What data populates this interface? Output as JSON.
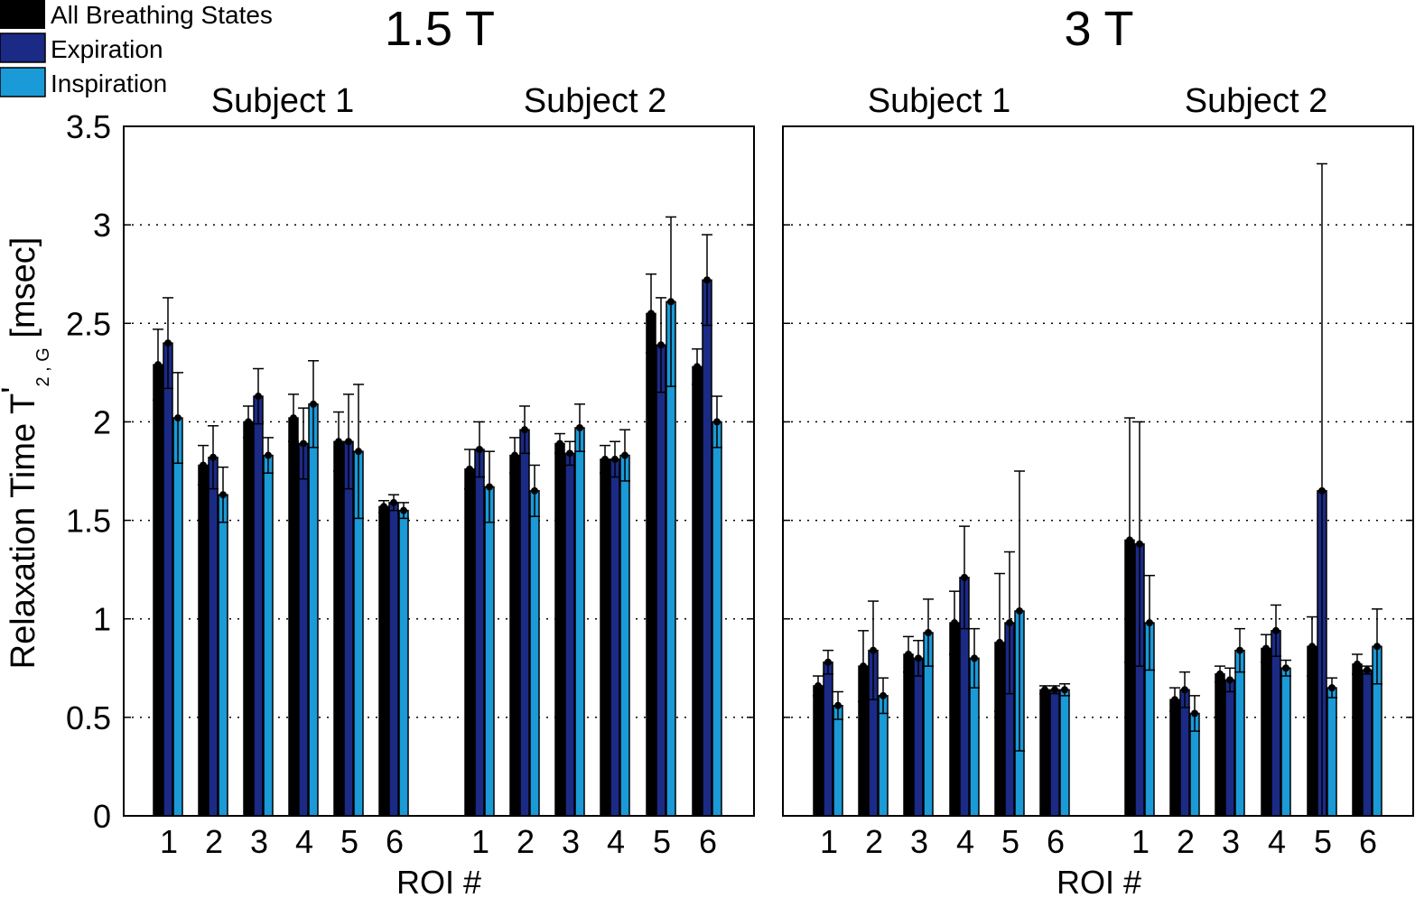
{
  "legend": {
    "placement": "top-left",
    "items": [
      {
        "label": "All Breathing States",
        "color": "#000000"
      },
      {
        "label": "Expiration",
        "color": "#1b2a85"
      },
      {
        "label": "Inspiration",
        "color": "#1a9ad7"
      }
    ]
  },
  "y_axis_label_main": "Relaxation Time T",
  "y_axis_label_prime": "'",
  "y_axis_label_sub": "2 , G",
  "y_axis_label_unit": " [msec]",
  "chart_data": [
    {
      "type": "bar",
      "title": "1.5 T",
      "xlabel": "ROI #",
      "ylabel": "Relaxation Time T'2,G [msec]",
      "ylim": [
        0,
        3.5
      ],
      "yticks": [
        "0",
        "0.5",
        "1",
        "1.5",
        "2",
        "2.5",
        "3",
        "3.5"
      ],
      "grid": "dotted horizontal",
      "groups": [
        {
          "label": "Subject 1",
          "categories": [
            "1",
            "2",
            "3",
            "4",
            "5",
            "6"
          ],
          "series": [
            {
              "name": "All Breathing States",
              "values": [
                2.29,
                1.78,
                2.0,
                2.02,
                1.9,
                1.57
              ],
              "errors": [
                0.18,
                0.1,
                0.08,
                0.12,
                0.15,
                0.03
              ]
            },
            {
              "name": "Expiration",
              "values": [
                2.4,
                1.82,
                2.13,
                1.89,
                1.9,
                1.59
              ],
              "errors": [
                0.23,
                0.16,
                0.14,
                0.18,
                0.24,
                0.04
              ]
            },
            {
              "name": "Inspiration",
              "values": [
                2.02,
                1.63,
                1.83,
                2.09,
                1.85,
                1.55
              ],
              "errors": [
                0.23,
                0.14,
                0.09,
                0.22,
                0.34,
                0.04
              ]
            }
          ]
        },
        {
          "label": "Subject 2",
          "categories": [
            "1",
            "2",
            "3",
            "4",
            "5",
            "6"
          ],
          "series": [
            {
              "name": "All Breathing States",
              "values": [
                1.76,
                1.83,
                1.89,
                1.81,
                2.55,
                2.28
              ],
              "errors": [
                0.1,
                0.09,
                0.05,
                0.07,
                0.2,
                0.09
              ]
            },
            {
              "name": "Expiration",
              "values": [
                1.86,
                1.96,
                1.84,
                1.81,
                2.39,
                2.72
              ],
              "errors": [
                0.14,
                0.12,
                0.06,
                0.09,
                0.24,
                0.23
              ]
            },
            {
              "name": "Inspiration",
              "values": [
                1.67,
                1.65,
                1.97,
                1.83,
                2.61,
                2.0
              ],
              "errors": [
                0.18,
                0.13,
                0.12,
                0.13,
                0.43,
                0.13
              ]
            }
          ]
        }
      ]
    },
    {
      "type": "bar",
      "title": "3 T",
      "xlabel": "ROI #",
      "ylabel": "Relaxation Time T'2,G [msec]",
      "ylim": [
        0,
        3.5
      ],
      "yticks": [
        "0",
        "0.5",
        "1",
        "1.5",
        "2",
        "2.5",
        "3",
        "3.5"
      ],
      "grid": "dotted horizontal",
      "groups": [
        {
          "label": "Subject 1",
          "categories": [
            "1",
            "2",
            "3",
            "4",
            "5",
            "6"
          ],
          "series": [
            {
              "name": "All Breathing States",
              "values": [
                0.66,
                0.76,
                0.82,
                0.98,
                0.88,
                0.64
              ],
              "errors": [
                0.05,
                0.18,
                0.09,
                0.16,
                0.35,
                0.02
              ]
            },
            {
              "name": "Expiration",
              "values": [
                0.78,
                0.84,
                0.8,
                1.21,
                0.98,
                0.64
              ],
              "errors": [
                0.06,
                0.25,
                0.09,
                0.26,
                0.36,
                0.02
              ]
            },
            {
              "name": "Inspiration",
              "values": [
                0.56,
                0.61,
                0.93,
                0.8,
                1.04,
                0.64
              ],
              "errors": [
                0.07,
                0.09,
                0.17,
                0.15,
                0.71,
                0.03
              ]
            }
          ]
        },
        {
          "label": "Subject 2",
          "categories": [
            "1",
            "2",
            "3",
            "4",
            "5",
            "6"
          ],
          "series": [
            {
              "name": "All Breathing States",
              "values": [
                1.4,
                0.59,
                0.72,
                0.85,
                0.86,
                0.77
              ],
              "errors": [
                0.62,
                0.06,
                0.04,
                0.07,
                0.15,
                0.05
              ]
            },
            {
              "name": "Expiration",
              "values": [
                1.38,
                0.64,
                0.69,
                0.94,
                1.65,
                0.74
              ],
              "errors": [
                0.62,
                0.09,
                0.06,
                0.13,
                1.66,
                0.02
              ]
            },
            {
              "name": "Inspiration",
              "values": [
                0.98,
                0.52,
                0.84,
                0.75,
                0.65,
                0.86
              ],
              "errors": [
                0.24,
                0.09,
                0.11,
                0.04,
                0.05,
                0.19
              ]
            }
          ]
        }
      ]
    }
  ]
}
